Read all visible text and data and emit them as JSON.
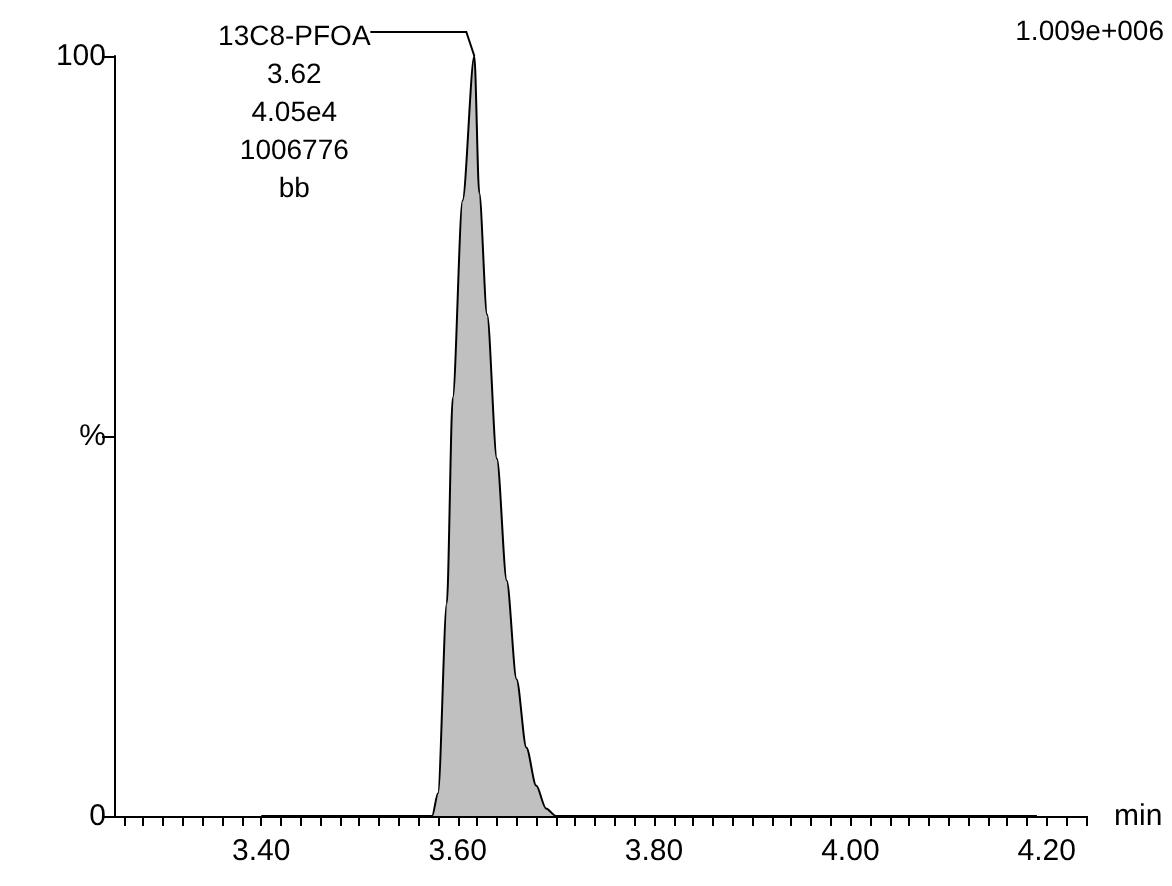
{
  "chart_data": {
    "type": "area",
    "xlabel": "min",
    "x": [
      3.4,
      3.574,
      3.58,
      3.589,
      3.595,
      3.605,
      3.617,
      3.622,
      3.63,
      3.64,
      3.65,
      3.66,
      3.67,
      3.68,
      3.69,
      3.7,
      4.19
    ],
    "series": [
      {
        "color": "#c0c0c0",
        "values": [
          0,
          0,
          3,
          28,
          55,
          81,
          100,
          82,
          66,
          47,
          31,
          18,
          9,
          4,
          1,
          0,
          0
        ]
      }
    ],
    "xlim": [
      3.25,
      4.24
    ],
    "xticks": [
      {
        "value": 3.26,
        "label": null
      },
      {
        "value": 3.28,
        "label": null
      },
      {
        "value": 3.3,
        "label": null
      },
      {
        "value": 3.32,
        "label": null
      },
      {
        "value": 3.34,
        "label": null
      },
      {
        "value": 3.36,
        "label": null
      },
      {
        "value": 3.38,
        "label": null
      },
      {
        "value": 3.4,
        "label": "3.40"
      },
      {
        "value": 3.42,
        "label": null
      },
      {
        "value": 3.44,
        "label": null
      },
      {
        "value": 3.46,
        "label": null
      },
      {
        "value": 3.48,
        "label": null
      },
      {
        "value": 3.5,
        "label": null
      },
      {
        "value": 3.52,
        "label": null
      },
      {
        "value": 3.54,
        "label": null
      },
      {
        "value": 3.56,
        "label": null
      },
      {
        "value": 3.58,
        "label": null
      },
      {
        "value": 3.6,
        "label": "3.60"
      },
      {
        "value": 3.62,
        "label": null
      },
      {
        "value": 3.64,
        "label": null
      },
      {
        "value": 3.66,
        "label": null
      },
      {
        "value": 3.68,
        "label": null
      },
      {
        "value": 3.7,
        "label": null
      },
      {
        "value": 3.72,
        "label": null
      },
      {
        "value": 3.74,
        "label": null
      },
      {
        "value": 3.76,
        "label": null
      },
      {
        "value": 3.78,
        "label": null
      },
      {
        "value": 3.8,
        "label": "3.80"
      },
      {
        "value": 3.82,
        "label": null
      },
      {
        "value": 3.84,
        "label": null
      },
      {
        "value": 3.86,
        "label": null
      },
      {
        "value": 3.88,
        "label": null
      },
      {
        "value": 3.9,
        "label": null
      },
      {
        "value": 3.92,
        "label": null
      },
      {
        "value": 3.94,
        "label": null
      },
      {
        "value": 3.96,
        "label": null
      },
      {
        "value": 3.98,
        "label": null
      },
      {
        "value": 4.0,
        "label": "4.00"
      },
      {
        "value": 4.02,
        "label": null
      },
      {
        "value": 4.04,
        "label": null
      },
      {
        "value": 4.06,
        "label": null
      },
      {
        "value": 4.08,
        "label": null
      },
      {
        "value": 4.1,
        "label": null
      },
      {
        "value": 4.12,
        "label": null
      },
      {
        "value": 4.14,
        "label": null
      },
      {
        "value": 4.16,
        "label": null
      },
      {
        "value": 4.18,
        "label": null
      },
      {
        "value": 4.2,
        "label": "4.20"
      },
      {
        "value": 4.22,
        "label": null
      },
      {
        "value": 4.24,
        "label": null
      }
    ],
    "ylim": [
      0,
      100
    ],
    "yticks": [
      0,
      {
        "value": 50,
        "label": "%"
      },
      100
    ],
    "grid": false,
    "marker": "none",
    "annotations": [
      {
        "text": "13C8-PFOA\n3.62\n4.05e4\n1006776\nbb",
        "x": 3.617,
        "y": 100
      },
      "1.009e+006"
    ]
  }
}
